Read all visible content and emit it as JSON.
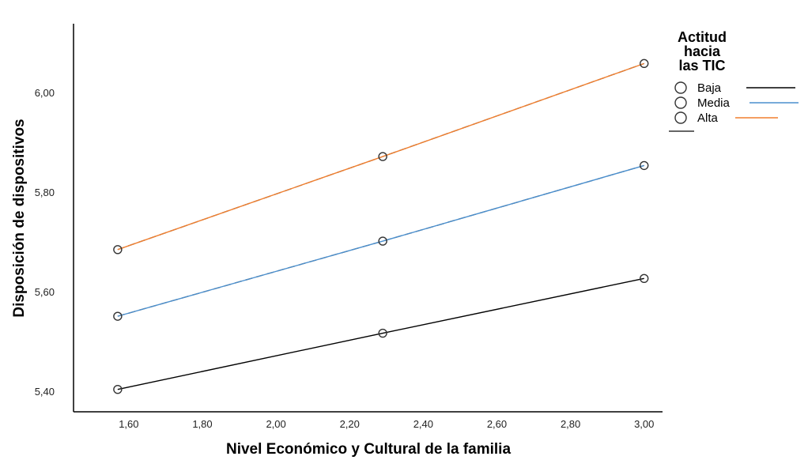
{
  "chart_data": {
    "type": "line",
    "xlabel": "Nivel Económico y Cultural de la familia",
    "ylabel": "Disposición de dispositivos",
    "x_tick_labels": [
      "1,60",
      "1,80",
      "2,00",
      "2,20",
      "2,40",
      "2,60",
      "2,80",
      "3,00"
    ],
    "x_ticks": [
      1.6,
      1.8,
      2.0,
      2.2,
      2.4,
      2.6,
      2.8,
      3.0
    ],
    "y_tick_labels": [
      "5,40",
      "5,60",
      "5,80",
      "6,00"
    ],
    "y_ticks": [
      5.4,
      5.6,
      5.8,
      6.0
    ],
    "xlim": [
      1.45,
      3.05
    ],
    "ylim": [
      5.36,
      6.14
    ],
    "x": [
      1.57,
      2.29,
      3.0
    ],
    "series": [
      {
        "name": "Baja",
        "values": [
          5.405,
          5.518,
          5.628
        ],
        "color": "#000000"
      },
      {
        "name": "Media",
        "values": [
          5.552,
          5.703,
          5.855
        ],
        "color": "#4a8fce"
      },
      {
        "name": "Alta",
        "values": [
          5.686,
          5.873,
          6.06
        ],
        "color": "#f07f2f"
      }
    ],
    "legend": {
      "title_lines": [
        "Actitud",
        "hacia",
        "las TIC"
      ],
      "placement": "right"
    },
    "grid": false,
    "markers": "open-circle"
  }
}
